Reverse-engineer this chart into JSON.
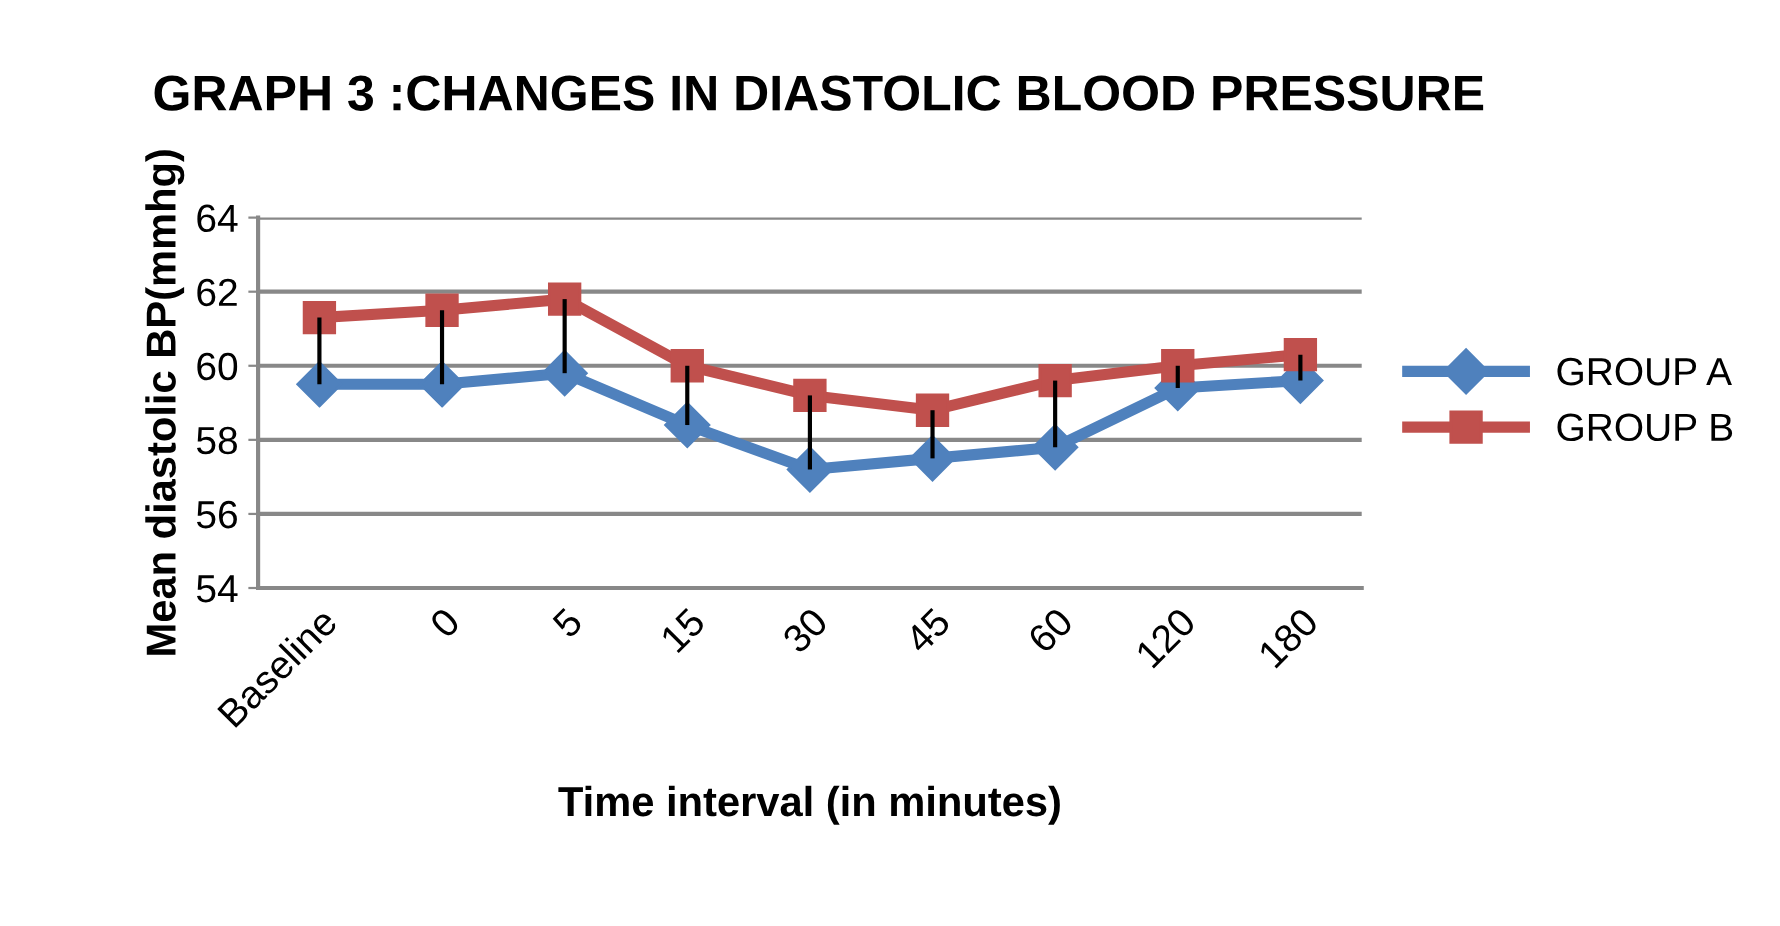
{
  "chart_data": {
    "type": "line",
    "title": "GRAPH 3 :CHANGES IN DIASTOLIC BLOOD PRESSURE",
    "xlabel": "Time interval (in minutes)",
    "ylabel": "Mean diastolic BP(mmhg)",
    "categories": [
      "Baseline",
      "0",
      "5",
      "15",
      "30",
      "45",
      "60",
      "120",
      "180"
    ],
    "series": [
      {
        "name": "GROUP A",
        "color": "#4f81bd",
        "marker": "diamond",
        "values": [
          59.5,
          59.5,
          59.8,
          58.4,
          57.2,
          57.5,
          57.8,
          59.4,
          59.6
        ]
      },
      {
        "name": "GROUP B",
        "color": "#c0504d",
        "marker": "square",
        "values": [
          61.3,
          61.5,
          61.8,
          60.0,
          59.2,
          58.8,
          59.6,
          60.0,
          60.3
        ],
        "errors": [
          [
            59.5,
            61.3
          ],
          [
            59.5,
            61.5
          ],
          [
            59.8,
            61.8
          ],
          [
            58.4,
            60.0
          ],
          [
            57.2,
            59.2
          ],
          [
            57.5,
            58.8
          ],
          [
            57.8,
            59.6
          ],
          [
            59.4,
            60.0
          ],
          [
            59.6,
            60.3
          ]
        ]
      }
    ],
    "ylim": [
      54,
      64
    ],
    "yticks": [
      54,
      56,
      58,
      60,
      62,
      64
    ],
    "grid": "y",
    "legend": "right",
    "line_style": "solid"
  }
}
